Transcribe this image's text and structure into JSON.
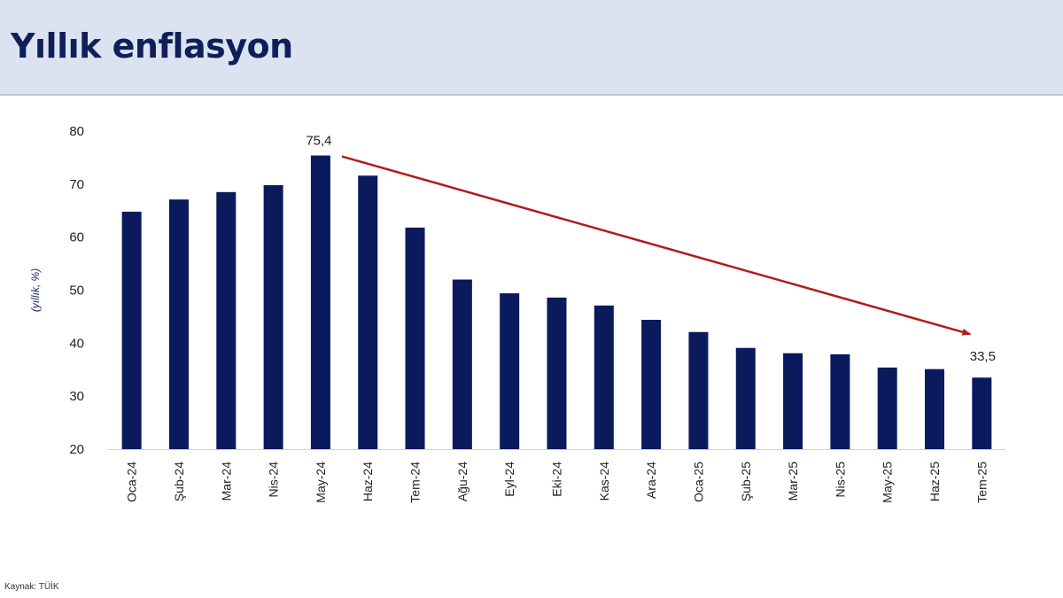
{
  "header": {
    "title": "Yıllık enflasyon"
  },
  "footer": {
    "source": "Kaynak: TÜİK"
  },
  "colors": {
    "bar": "#0a1a5c",
    "arrow": "#b01c1c",
    "header_bg": "#dbe3f1",
    "title": "#0f1f5a"
  },
  "chart_data": {
    "type": "bar",
    "title": "",
    "xlabel": "",
    "ylabel": "(yıllık, %)",
    "ylim": [
      20,
      80
    ],
    "yticks": [
      20,
      30,
      40,
      50,
      60,
      70,
      80
    ],
    "grid": false,
    "categories": [
      "Oca-24",
      "Şub-24",
      "Mar-24",
      "Nis-24",
      "May-24",
      "Haz-24",
      "Tem-24",
      "Ağu-24",
      "Eyl-24",
      "Eki-24",
      "Kas-24",
      "Ara-24",
      "Oca-25",
      "Şub-25",
      "Mar-25",
      "Nis-25",
      "May-25",
      "Haz-25",
      "Tem-25"
    ],
    "series": [
      {
        "values": [
          64.8,
          67.1,
          68.5,
          69.8,
          75.4,
          71.6,
          61.8,
          52.0,
          49.4,
          48.6,
          47.1,
          44.4,
          42.1,
          39.1,
          38.1,
          37.9,
          35.4,
          35.1,
          33.5
        ]
      }
    ],
    "annotations": [
      {
        "category": "May-24",
        "text": "75,4"
      },
      {
        "category": "Tem-25",
        "text": "33,5"
      }
    ],
    "trend_arrow": {
      "from": "May-24",
      "to": "Tem-25"
    }
  }
}
